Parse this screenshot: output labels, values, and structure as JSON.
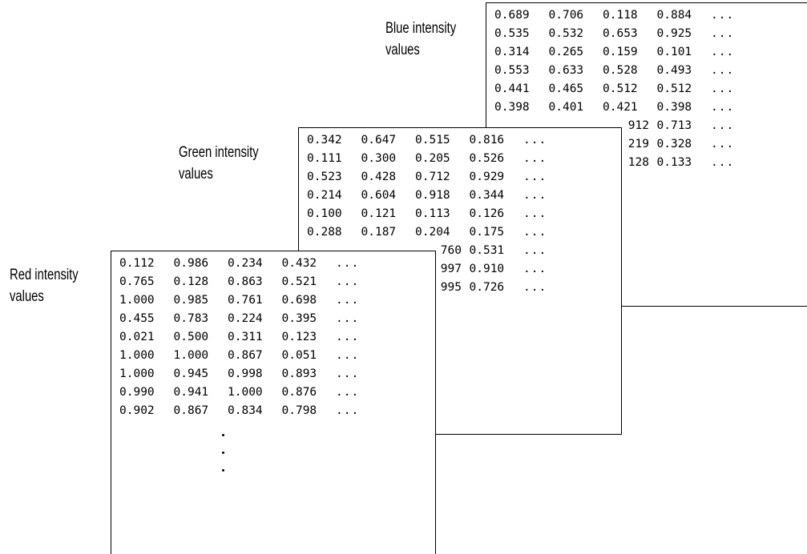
{
  "labels": {
    "blue": {
      "line1": "Blue intensity",
      "line2": "values"
    },
    "green": {
      "line1": "Green intensity",
      "line2": "values"
    },
    "red": {
      "line1": "Red intensity",
      "line2": "values"
    }
  },
  "ellipsis": "...",
  "vertical_ellipsis_count": 3,
  "matrices": {
    "blue": [
      [
        "0.689",
        "0.706",
        "0.118",
        "0.884"
      ],
      [
        "0.535",
        "0.532",
        "0.653",
        "0.925"
      ],
      [
        "0.314",
        "0.265",
        "0.159",
        "0.101"
      ],
      [
        "0.553",
        "0.633",
        "0.528",
        "0.493"
      ],
      [
        "0.441",
        "0.465",
        "0.512",
        "0.512"
      ],
      [
        "0.398",
        "0.401",
        "0.421",
        "0.398"
      ],
      [
        "",
        "",
        "912",
        "0.713"
      ],
      [
        "",
        "",
        "219",
        "0.328"
      ],
      [
        "",
        "",
        "128",
        "0.133"
      ]
    ],
    "green": [
      [
        "0.342",
        "0.647",
        "0.515",
        "0.816"
      ],
      [
        "0.111",
        "0.300",
        "0.205",
        "0.526"
      ],
      [
        "0.523",
        "0.428",
        "0.712",
        "0.929"
      ],
      [
        "0.214",
        "0.604",
        "0.918",
        "0.344"
      ],
      [
        "0.100",
        "0.121",
        "0.113",
        "0.126"
      ],
      [
        "0.288",
        "0.187",
        "0.204",
        "0.175"
      ],
      [
        "",
        "",
        "760",
        "0.531"
      ],
      [
        "",
        "",
        "997",
        "0.910"
      ],
      [
        "",
        "",
        "995",
        "0.726"
      ]
    ],
    "red": [
      [
        "0.112",
        "0.986",
        "0.234",
        "0.432"
      ],
      [
        "0.765",
        "0.128",
        "0.863",
        "0.521"
      ],
      [
        "1.000",
        "0.985",
        "0.761",
        "0.698"
      ],
      [
        "0.455",
        "0.783",
        "0.224",
        "0.395"
      ],
      [
        "0.021",
        "0.500",
        "0.311",
        "0.123"
      ],
      [
        "1.000",
        "1.000",
        "0.867",
        "0.051"
      ],
      [
        "1.000",
        "0.945",
        "0.998",
        "0.893"
      ],
      [
        "0.990",
        "0.941",
        "1.000",
        "0.876"
      ],
      [
        "0.902",
        "0.867",
        "0.834",
        "0.798"
      ]
    ]
  }
}
